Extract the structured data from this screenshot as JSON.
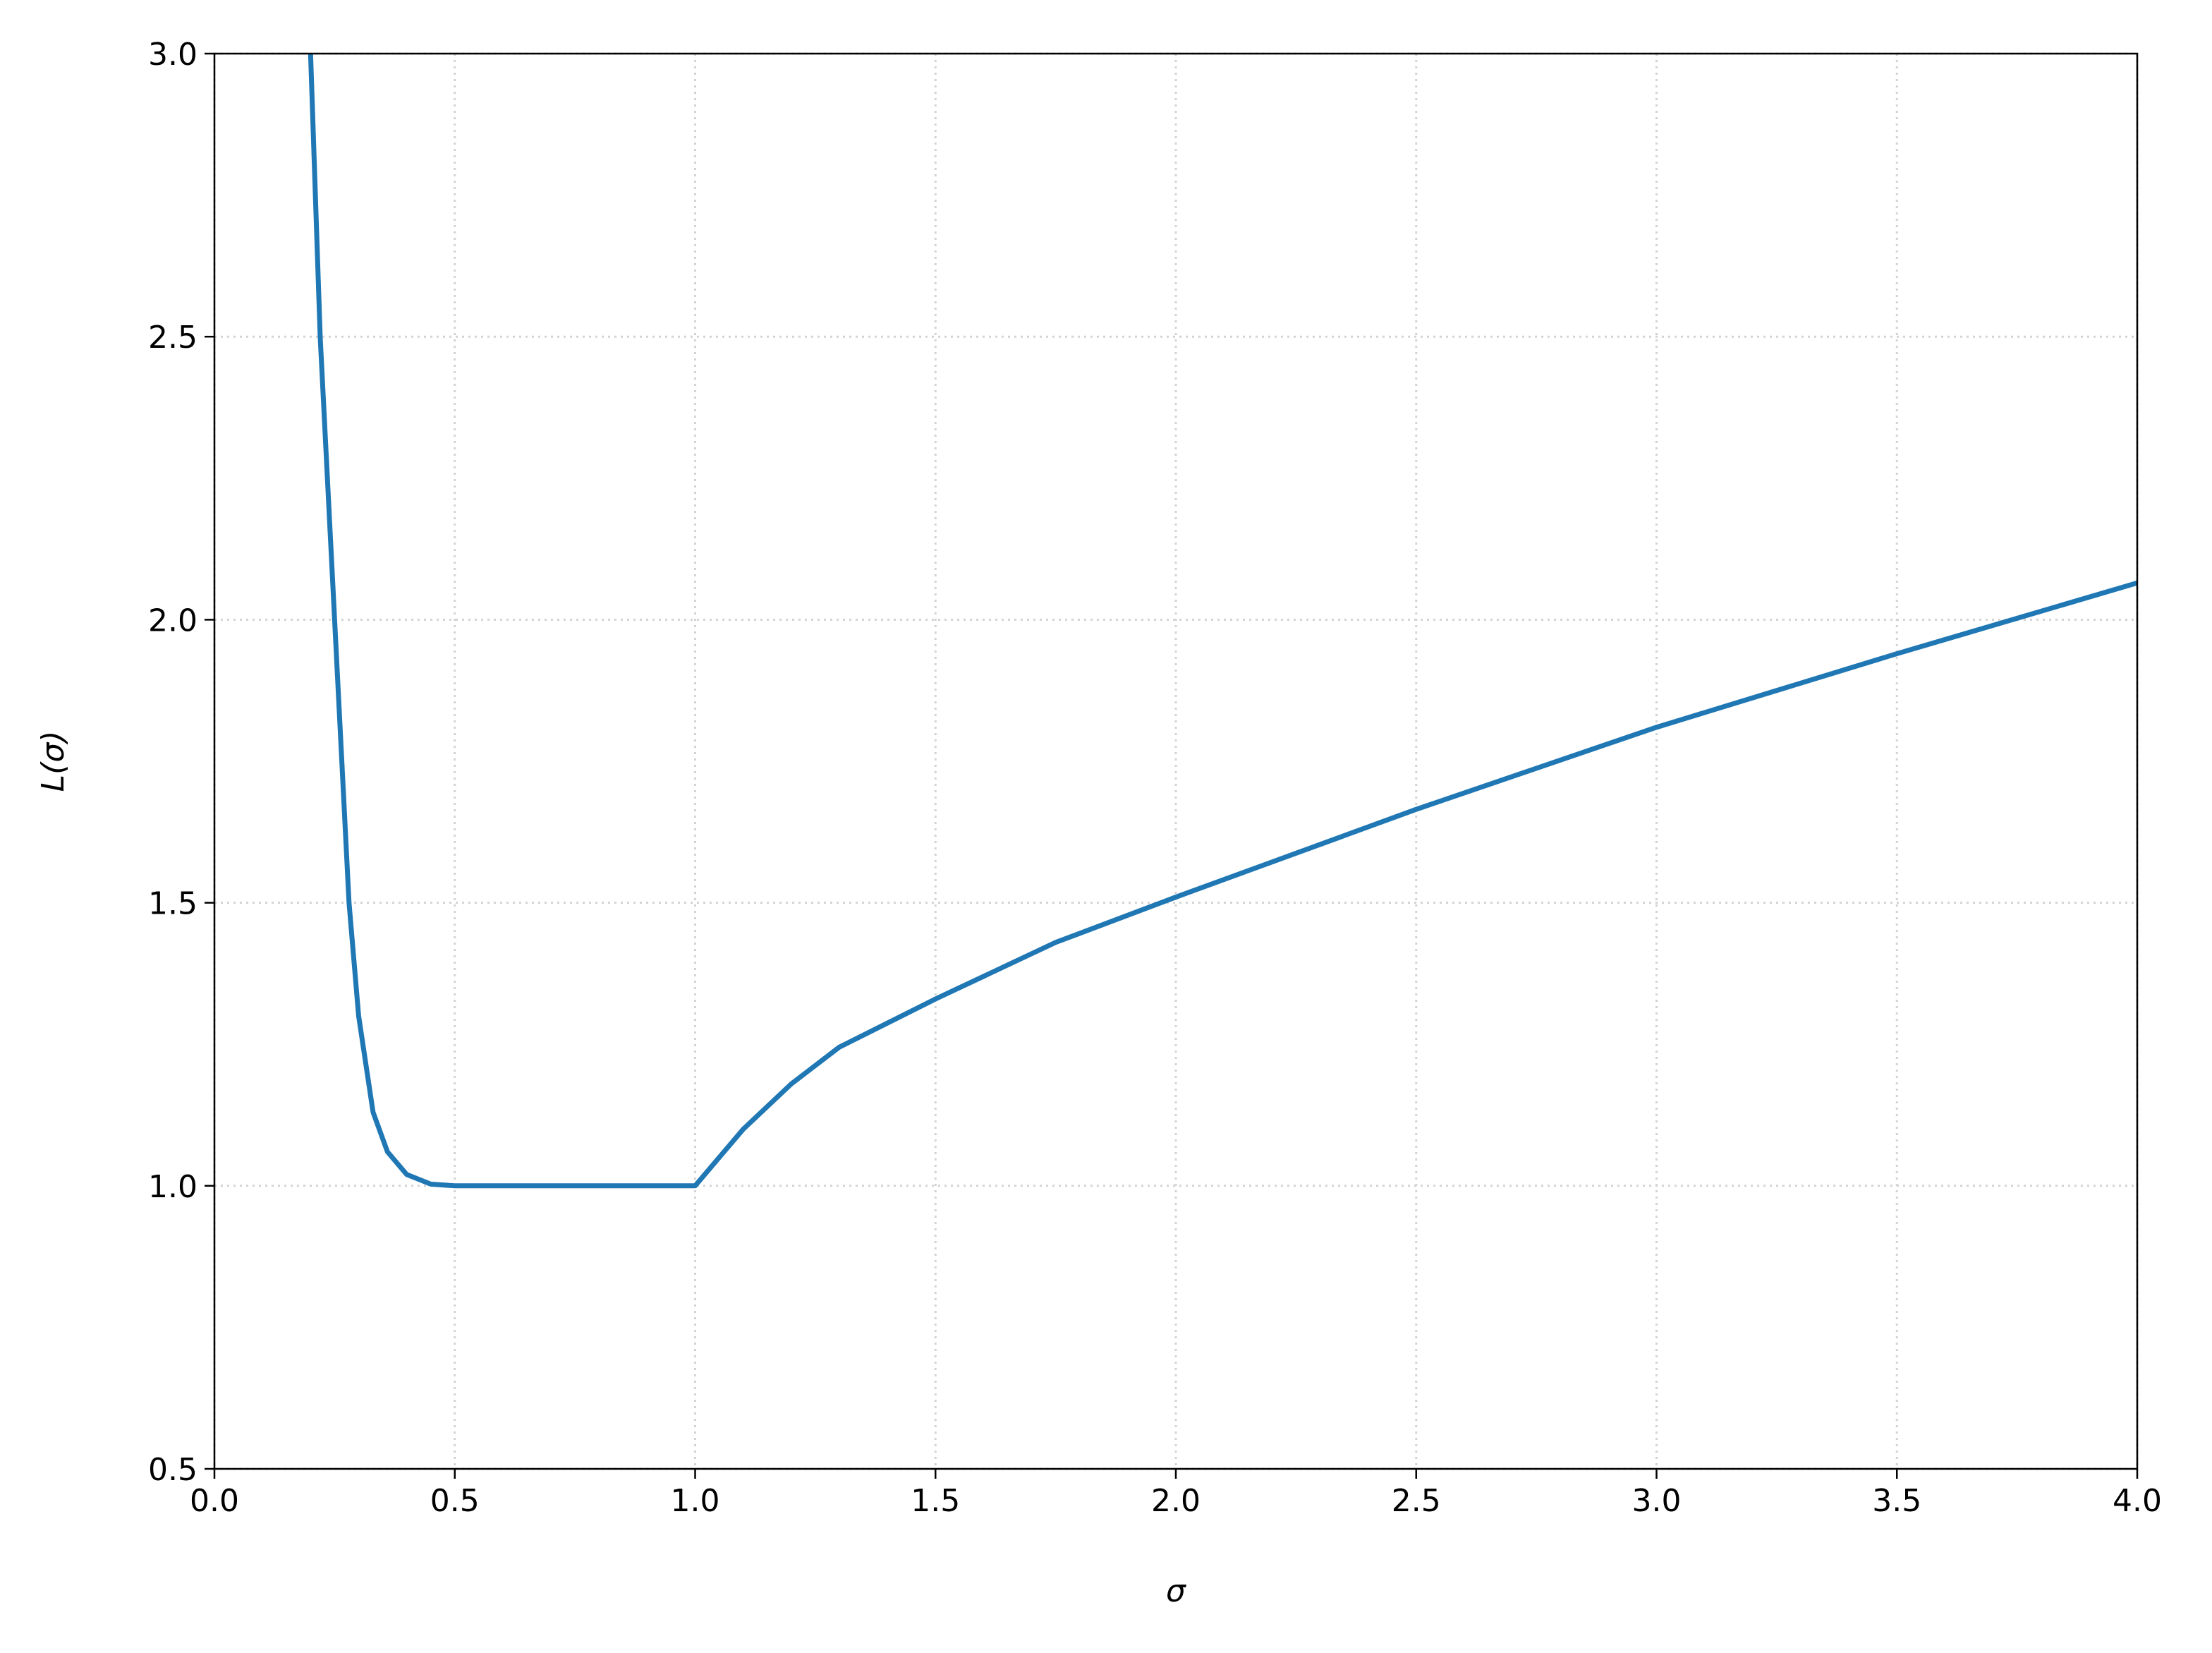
{
  "chart_data": {
    "type": "line",
    "x_label": "σ",
    "y_label": "L(σ)",
    "x": [
      0.2,
      0.22,
      0.25,
      0.28,
      0.3,
      0.33,
      0.36,
      0.4,
      0.45,
      0.5,
      0.75,
      1.0,
      1.1,
      1.2,
      1.3,
      1.5,
      1.75,
      2.0,
      2.5,
      3.0,
      3.5,
      4.0
    ],
    "series": [
      {
        "color": "#1f77b4",
        "values": [
          3.0,
          2.5,
          2.0,
          1.5,
          1.3,
          1.13,
          1.06,
          1.02,
          1.003,
          1.0,
          1.0,
          1.0,
          1.1,
          1.18,
          1.245,
          1.33,
          1.43,
          1.51,
          1.665,
          1.81,
          1.94,
          2.065
        ]
      }
    ],
    "xlim": [
      0,
      4
    ],
    "ylim": [
      0.5,
      3
    ],
    "xticks": [
      {
        "value": 0,
        "label": "0.0"
      },
      0.5,
      {
        "value": 1,
        "label": "1.0"
      },
      1.5,
      {
        "value": 2,
        "label": "2.0"
      },
      2.5,
      {
        "value": 3,
        "label": "3.0"
      },
      3.5,
      {
        "value": 4,
        "label": "4.0"
      }
    ],
    "yticks": [
      0.5,
      {
        "value": 1,
        "label": "1.0"
      },
      1.5,
      {
        "value": 2,
        "label": "2.0"
      },
      2.5,
      {
        "value": 3,
        "label": "3.0"
      }
    ],
    "grid": true
  }
}
